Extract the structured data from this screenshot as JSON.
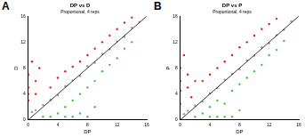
{
  "chart_data": [
    {
      "type": "scatter",
      "annotation": "A",
      "title": "DP vs D",
      "subtitle": "Proportional, 4 reps",
      "x_label": "DP",
      "y_label": "D",
      "xlim": [
        0,
        16
      ],
      "xticks": [
        0,
        4,
        8,
        12,
        16
      ],
      "ylim": [
        0,
        16
      ],
      "yticks": [
        0,
        4,
        8,
        12,
        16
      ],
      "grid": false,
      "series": [
        {
          "type": "line",
          "color": "#000000",
          "x": [
            0,
            16
          ],
          "y": [
            0,
            16
          ]
        },
        {
          "color": "#999999",
          "x": [
            0.5,
            1,
            2,
            3,
            4,
            5,
            6,
            7,
            8,
            9,
            10,
            11,
            12,
            13,
            14,
            15
          ],
          "y": [
            1.2,
            1.5,
            2.3,
            3.1,
            3.8,
            5.2,
            6.1,
            6.8,
            8.3,
            8.8,
            10.2,
            10.9,
            12.1,
            12.8,
            14.2,
            15.1
          ]
        },
        {
          "color": "#e41a1c",
          "x": [
            0,
            0,
            0,
            0,
            1,
            1,
            1.5,
            0.5,
            3,
            4,
            5,
            6,
            7,
            8,
            9,
            10,
            11,
            12,
            13,
            14
          ],
          "y": [
            3,
            5,
            7,
            4,
            6,
            4,
            8,
            9,
            5,
            6.5,
            7.5,
            8.2,
            9,
            10,
            11,
            12,
            13,
            14,
            15,
            15.8
          ]
        },
        {
          "color": "#33cc33",
          "x": [
            3,
            4,
            5,
            5,
            6,
            7,
            7,
            8,
            9,
            9,
            10,
            11,
            12,
            13,
            14,
            8,
            6,
            2
          ],
          "y": [
            0.5,
            1,
            2,
            0.5,
            3,
            4,
            1,
            5,
            6,
            2,
            7.5,
            8.5,
            9.5,
            11,
            12,
            0.5,
            0.5,
            0.5
          ]
        }
      ]
    },
    {
      "type": "scatter",
      "annotation": "B",
      "title": "DP vs P",
      "subtitle": "Proportional, 4 reps",
      "x_label": "DP",
      "y_label": "P",
      "xlim": [
        0,
        16
      ],
      "xticks": [
        0,
        4,
        8,
        12,
        16
      ],
      "ylim": [
        0,
        16
      ],
      "yticks": [
        0,
        4,
        8,
        12,
        16
      ],
      "grid": false,
      "series": [
        {
          "type": "line",
          "color": "#000000",
          "x": [
            0,
            16
          ],
          "y": [
            0,
            16
          ]
        },
        {
          "color": "#999999",
          "x": [
            0.5,
            1,
            2,
            3,
            4,
            5,
            6,
            7,
            8,
            9,
            10,
            11,
            12,
            13,
            14,
            15
          ],
          "y": [
            0.9,
            1.4,
            2.2,
            2.8,
            4.1,
            4.9,
            6.2,
            7.1,
            7.8,
            9.2,
            9.9,
            11.2,
            11.8,
            13.1,
            13.9,
            15.2
          ]
        },
        {
          "color": "#e41a1c",
          "x": [
            0,
            0,
            0,
            0,
            1,
            1,
            1.5,
            0.5,
            2,
            3,
            4,
            5,
            6,
            7,
            8,
            9,
            10,
            11,
            12,
            13
          ],
          "y": [
            2.5,
            4.5,
            6,
            8,
            5,
            7,
            3.5,
            10,
            6,
            6,
            7,
            8,
            9,
            10,
            11.2,
            12,
            13,
            14,
            14.8,
            15.6
          ]
        },
        {
          "color": "#33cc33",
          "x": [
            2,
            3,
            4,
            4,
            5,
            6,
            6,
            7,
            8,
            8,
            9,
            10,
            11,
            12,
            13,
            14,
            7,
            5
          ],
          "y": [
            0.5,
            1,
            0.5,
            2,
            3,
            2.5,
            0.5,
            4.5,
            5.5,
            1.5,
            6.5,
            7.5,
            8.5,
            10,
            10.8,
            12.2,
            0.5,
            0.5
          ]
        }
      ]
    }
  ]
}
